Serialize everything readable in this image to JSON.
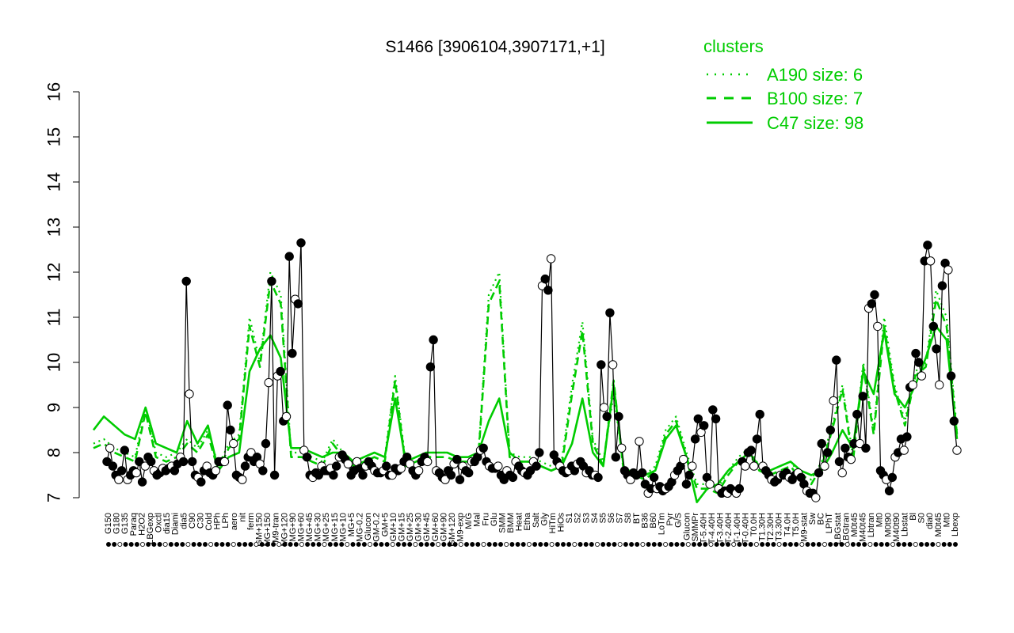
{
  "chart_data": {
    "type": "line",
    "title": "S1466 [3906104,3907171,+1]",
    "xlabel": "",
    "ylabel": "",
    "ylim": [
      7,
      16
    ],
    "yticks": [
      7,
      8,
      9,
      10,
      11,
      12,
      13,
      14,
      15,
      16
    ],
    "grid": false,
    "legend": {
      "title": "clusters",
      "placement": "top-right",
      "color": "#00cc00",
      "entries": [
        {
          "label": "A190 size: 6",
          "style": "dotted"
        },
        {
          "label": "B100 size: 7",
          "style": "dashed"
        },
        {
          "label": "C47 size: 98",
          "style": "solid"
        }
      ]
    },
    "colors": {
      "series": "#000000",
      "clusters": "#00cc00"
    },
    "x_tick_labels": [
      "G150",
      "G180",
      "G135",
      "Paraq",
      "H2O2",
      "LBGexp",
      "Oxctl",
      "dia15",
      "Diami",
      "dia5",
      "C90",
      "C30",
      "Cold",
      "HPh",
      "LPh",
      "aero",
      "nit",
      "ferm",
      "GM+150",
      "MG+150",
      "M9-tran",
      "MG+120",
      "MG+90",
      "MG+60",
      "MG+45",
      "MG+30",
      "MG+25",
      "MG+15",
      "MG+10",
      "MG+5",
      "MG-0.2",
      "Glucon",
      "GM-0.2",
      "GM+5",
      "GM+10",
      "GM+15",
      "GM+25",
      "GM+30",
      "GM+45",
      "GM+60",
      "GM+90",
      "GM+120",
      "M9-exp",
      "M/G",
      "Mal",
      "Fru",
      "Glu",
      "SMM",
      "BMM",
      "Heat",
      "Etha",
      "Salt",
      "Gly",
      "HiTm",
      "HiOs",
      "S1",
      "S2",
      "S3",
      "S4",
      "S5",
      "S6",
      "S7",
      "S8",
      "BT",
      "B36",
      "B60",
      "LoTm",
      "Pyr",
      "G/S",
      "Glucon",
      "SMMPr",
      "T-5.40H",
      "T-4.40H",
      "T-3.40H",
      "T-2.40H",
      "T-1.40H",
      "T-0.40H",
      "T0.0H",
      "T1.30H",
      "T2.30H",
      "T3.30H",
      "T4.0H",
      "T5.0H",
      "M9-stat",
      "Sw",
      "BC",
      "LPhT",
      "LBGstat",
      "LBGtran",
      "M0t45",
      "M40t45",
      "Lbtran",
      "Mt0",
      "M0t90",
      "M40t90",
      "Lbstat",
      "Bl",
      "S0",
      "dia0",
      "M0t45",
      "Mt0",
      "Lbexp"
    ],
    "series": [
      {
        "name": "",
        "values": [
          7.8,
          8.1,
          7.7,
          7.5,
          7.4,
          7.6,
          8.05,
          7.4,
          7.5,
          7.6,
          7.55,
          7.8,
          7.35,
          7.7,
          7.9,
          7.8,
          7.6,
          7.5,
          7.55,
          7.65,
          7.6,
          7.65,
          7.7,
          7.6,
          7.75,
          7.9,
          7.8,
          11.8,
          9.3,
          7.8,
          7.5,
          7.45,
          7.35,
          7.6,
          7.7,
          7.55,
          7.5,
          7.6,
          7.8,
          7.8,
          7.8,
          9.05,
          8.5,
          8.2,
          7.5,
          7.45,
          7.4,
          7.7,
          7.9,
          8.0,
          7.8,
          7.9,
          7.75,
          7.6,
          8.2,
          9.55,
          11.8,
          7.5,
          9.7,
          9.8,
          8.7,
          8.8,
          12.35,
          10.2,
          11.4,
          11.3,
          12.65,
          8.05,
          7.9,
          7.5,
          7.45,
          7.55,
          7.5,
          7.7,
          7.6,
          7.6,
          7.65,
          7.5,
          7.7,
          7.9,
          7.95,
          7.85,
          7.75,
          7.5,
          7.6,
          7.8,
          7.65,
          7.5,
          7.7,
          7.8,
          7.7,
          7.6,
          7.55,
          7.55,
          7.6,
          7.7,
          7.5,
          7.5,
          7.65,
          7.6,
          7.65,
          7.8,
          7.9,
          7.75,
          7.6,
          7.5,
          7.6,
          7.8,
          7.9,
          7.8,
          9.9,
          10.5,
          7.6,
          7.55,
          7.45,
          7.4,
          7.6,
          7.5,
          7.75,
          7.85,
          7.4,
          7.7,
          7.6,
          7.55,
          7.8,
          7.8,
          7.9,
          8.05,
          8.1,
          7.8,
          7.7,
          7.65,
          7.65,
          7.7,
          7.5,
          7.4,
          7.6,
          7.5,
          7.45,
          7.8,
          7.7,
          7.6,
          7.55,
          7.5,
          7.6,
          7.8,
          7.7,
          8.0,
          11.7,
          11.85,
          11.6,
          12.3,
          7.95,
          7.8,
          7.7,
          7.6,
          7.55,
          7.6,
          7.7,
          7.6,
          7.75,
          7.8,
          7.7,
          7.55,
          7.6,
          7.5,
          7.5,
          7.45,
          9.95,
          9.0,
          8.8,
          11.1,
          9.95,
          7.9,
          8.8,
          8.1,
          7.6,
          7.5,
          7.4,
          7.55,
          7.5,
          8.25,
          7.55,
          7.3,
          7.1,
          7.2,
          7.45,
          7.2,
          7.25,
          7.15,
          7.2,
          7.25,
          7.35,
          7.5,
          7.6,
          7.7,
          7.85,
          7.3,
          7.5,
          7.7,
          8.3,
          8.75,
          8.45,
          8.6,
          7.45,
          7.3,
          8.95,
          8.75,
          7.2,
          7.1,
          7.15,
          7.1,
          7.2,
          7.15,
          7.1,
          7.2,
          7.8,
          7.7,
          8.0,
          8.05,
          7.7,
          8.3,
          8.85,
          7.7,
          7.6,
          7.5,
          7.4,
          7.35,
          7.4,
          7.5,
          7.5,
          7.55,
          7.45,
          7.4,
          7.5,
          7.55,
          7.45,
          7.3,
          7.15,
          7.1,
          7.1,
          7.0,
          7.55,
          8.2,
          7.7,
          8.0,
          8.5,
          9.15,
          10.05,
          7.8,
          7.55,
          8.1,
          7.9,
          7.85,
          8.2,
          8.85,
          8.2,
          9.25,
          8.1,
          11.2,
          11.3,
          11.5,
          10.8,
          7.6,
          7.5,
          7.4,
          7.15,
          7.45,
          7.9,
          8.0,
          8.3,
          8.05,
          8.35,
          9.45,
          9.5,
          10.2,
          10.0,
          9.7,
          12.25,
          12.6,
          12.25,
          10.8,
          10.3,
          9.5,
          11.7,
          12.2,
          12.05,
          9.7,
          8.7,
          8.05
        ]
      },
      {
        "name": "A190 size: 6",
        "values": [
          8.2,
          8.3,
          8.1,
          8.0,
          7.9,
          9.0,
          8.0,
          7.9,
          8.0,
          8.3,
          8.1,
          8.5,
          7.7,
          8.2,
          8.4,
          11.0,
          10.0,
          12.0,
          11.5,
          8.0,
          8.0,
          7.9,
          7.8,
          8.3,
          8.0,
          7.8,
          7.9,
          8.0,
          7.9,
          9.7,
          7.8,
          7.9,
          8.0,
          8.0,
          8.0,
          7.9,
          7.9,
          8.0,
          11.5,
          12.0,
          8.0,
          7.9,
          7.9,
          7.8,
          7.7,
          7.8,
          9.5,
          10.9,
          8.3,
          7.8,
          9.3,
          7.6,
          7.6,
          7.5,
          7.7,
          8.5,
          8.8,
          8.0,
          7.3,
          7.3,
          7.2,
          7.6,
          7.9,
          8.1,
          7.7,
          7.6,
          7.7,
          7.8,
          7.5,
          7.4,
          7.8,
          8.6,
          9.5,
          7.9,
          10.0,
          8.5,
          11.0,
          9.5,
          8.7,
          9.8,
          10.0,
          11.6,
          11.0,
          8.5
        ]
      },
      {
        "name": "B100 size: 7",
        "values": [
          8.1,
          8.2,
          8.0,
          7.9,
          7.8,
          8.9,
          7.9,
          7.8,
          7.9,
          8.2,
          8.0,
          8.4,
          7.6,
          8.1,
          8.3,
          10.8,
          9.9,
          11.8,
          11.3,
          7.9,
          7.9,
          7.8,
          7.7,
          8.2,
          7.9,
          7.7,
          7.8,
          7.9,
          7.8,
          9.6,
          7.7,
          7.8,
          7.9,
          7.9,
          7.9,
          7.8,
          7.8,
          7.9,
          11.3,
          11.8,
          7.9,
          7.8,
          7.8,
          7.7,
          7.6,
          7.7,
          9.3,
          10.7,
          8.2,
          7.7,
          9.6,
          7.5,
          7.5,
          7.4,
          7.6,
          8.4,
          8.7,
          7.9,
          7.2,
          7.2,
          7.1,
          7.5,
          7.8,
          8.0,
          7.6,
          7.5,
          7.6,
          7.7,
          7.4,
          7.3,
          7.7,
          8.5,
          9.4,
          7.8,
          9.9,
          8.4,
          10.8,
          9.4,
          8.6,
          9.7,
          9.9,
          11.4,
          10.8,
          8.4
        ]
      },
      {
        "name": "C47 size: 98",
        "values": [
          8.5,
          8.8,
          8.6,
          8.4,
          8.3,
          9.0,
          8.2,
          8.1,
          8.0,
          8.7,
          8.2,
          8.6,
          7.6,
          7.9,
          8.0,
          9.8,
          10.3,
          10.6,
          10.1,
          8.1,
          8.1,
          8.0,
          7.9,
          8.0,
          8.0,
          7.8,
          7.9,
          8.0,
          7.9,
          9.2,
          7.8,
          7.9,
          8.0,
          8.0,
          8.0,
          7.9,
          7.9,
          8.0,
          8.7,
          9.2,
          8.0,
          7.8,
          7.8,
          7.7,
          7.6,
          7.7,
          8.2,
          9.2,
          8.0,
          7.7,
          9.5,
          7.6,
          7.6,
          7.5,
          7.6,
          8.3,
          8.6,
          7.9,
          6.9,
          7.2,
          7.3,
          7.6,
          7.8,
          8.0,
          7.7,
          7.6,
          7.7,
          7.8,
          7.6,
          7.5,
          7.6,
          8.0,
          8.5,
          8.1,
          9.8,
          9.3,
          10.7,
          9.3,
          9.0,
          9.5,
          10.1,
          10.8,
          10.5,
          8.3
        ]
      }
    ]
  }
}
